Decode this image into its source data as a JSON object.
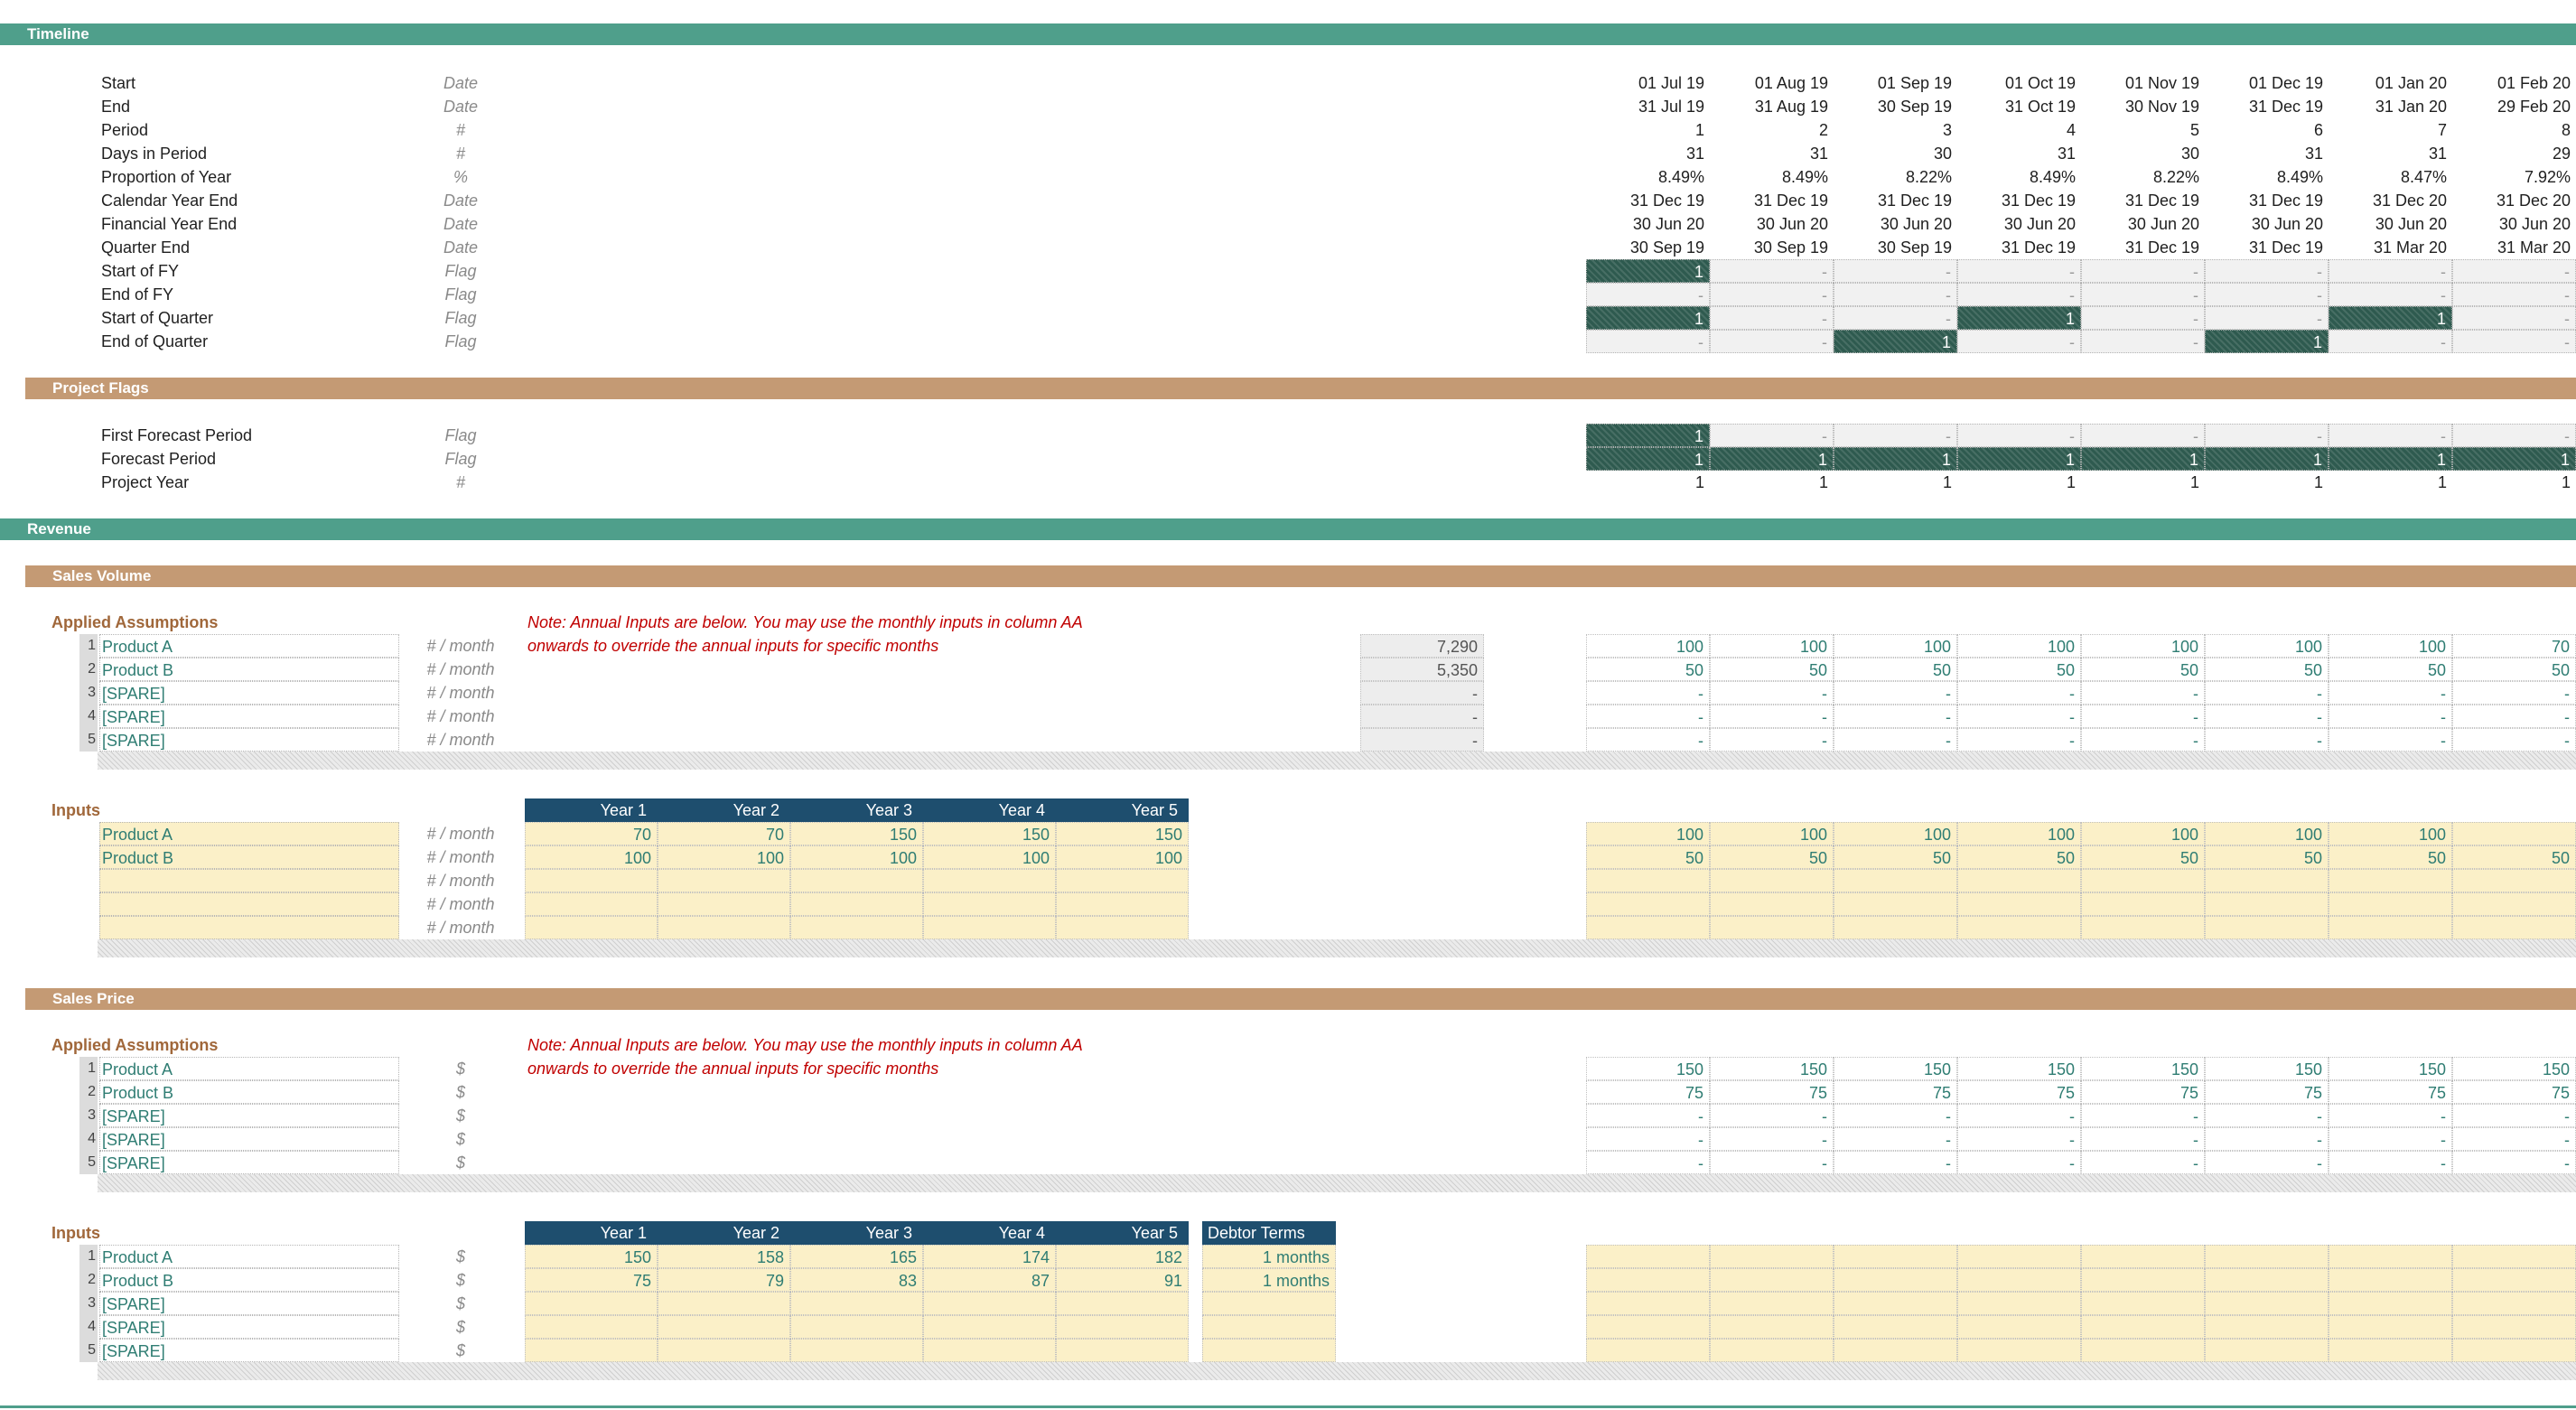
{
  "sections": {
    "timeline": "Timeline",
    "project_flags": "Project Flags",
    "revenue": "Revenue",
    "sales_volume": "Sales Volume",
    "sales_price": "Sales Price"
  },
  "months": [
    "01 Jul 19",
    "01 Aug 19",
    "01 Sep 19",
    "01 Oct 19",
    "01 Nov 19",
    "01 Dec 19",
    "01 Jan 20",
    "01 Feb 20"
  ],
  "timeline_rows": [
    {
      "label": "Start",
      "unit": "Date",
      "values": [
        "01 Jul 19",
        "01 Aug 19",
        "01 Sep 19",
        "01 Oct 19",
        "01 Nov 19",
        "01 Dec 19",
        "01 Jan 20",
        "01 Feb 20"
      ]
    },
    {
      "label": "End",
      "unit": "Date",
      "values": [
        "31 Jul 19",
        "31 Aug 19",
        "30 Sep 19",
        "31 Oct 19",
        "30 Nov 19",
        "31 Dec 19",
        "31 Jan 20",
        "29 Feb 20"
      ]
    },
    {
      "label": "Period",
      "unit": "#",
      "values": [
        "1",
        "2",
        "3",
        "4",
        "5",
        "6",
        "7",
        "8"
      ]
    },
    {
      "label": "Days in Period",
      "unit": "#",
      "values": [
        "31",
        "31",
        "30",
        "31",
        "30",
        "31",
        "31",
        "29"
      ]
    },
    {
      "label": "Proportion of Year",
      "unit": "%",
      "values": [
        "8.49%",
        "8.49%",
        "8.22%",
        "8.49%",
        "8.22%",
        "8.49%",
        "8.47%",
        "7.92%"
      ]
    },
    {
      "label": "Calendar Year End",
      "unit": "Date",
      "values": [
        "31 Dec 19",
        "31 Dec 19",
        "31 Dec 19",
        "31 Dec 19",
        "31 Dec 19",
        "31 Dec 19",
        "31 Dec 20",
        "31 Dec 20"
      ]
    },
    {
      "label": "Financial Year End",
      "unit": "Date",
      "values": [
        "30 Jun 20",
        "30 Jun 20",
        "30 Jun 20",
        "30 Jun 20",
        "30 Jun 20",
        "30 Jun 20",
        "30 Jun 20",
        "30 Jun 20"
      ]
    },
    {
      "label": "Quarter End",
      "unit": "Date",
      "values": [
        "30 Sep 19",
        "30 Sep 19",
        "30 Sep 19",
        "31 Dec 19",
        "31 Dec 19",
        "31 Dec 19",
        "31 Mar 20",
        "31 Mar 20"
      ]
    }
  ],
  "flag_rows": [
    {
      "label": "Start of FY",
      "unit": "Flag",
      "values": [
        "1",
        "-",
        "-",
        "-",
        "-",
        "-",
        "-",
        "-"
      ]
    },
    {
      "label": "End of FY",
      "unit": "Flag",
      "values": [
        "-",
        "-",
        "-",
        "-",
        "-",
        "-",
        "-",
        "-"
      ]
    },
    {
      "label": "Start of Quarter",
      "unit": "Flag",
      "values": [
        "1",
        "-",
        "-",
        "1",
        "-",
        "-",
        "1",
        "-"
      ]
    },
    {
      "label": "End of Quarter",
      "unit": "Flag",
      "values": [
        "-",
        "-",
        "1",
        "-",
        "-",
        "1",
        "-",
        "-"
      ]
    }
  ],
  "project_rows": [
    {
      "label": "First Forecast Period",
      "unit": "Flag",
      "values": [
        "1",
        "-",
        "-",
        "-",
        "-",
        "-",
        "-",
        "-"
      ],
      "flag": true
    },
    {
      "label": "Forecast Period",
      "unit": "Flag",
      "values": [
        "1",
        "1",
        "1",
        "1",
        "1",
        "1",
        "1",
        "1"
      ],
      "flag": true
    },
    {
      "label": "Project Year",
      "unit": "#",
      "values": [
        "1",
        "1",
        "1",
        "1",
        "1",
        "1",
        "1",
        "1"
      ],
      "flag": false
    }
  ],
  "common": {
    "applied_assumptions": "Applied Assumptions",
    "inputs": "Inputs",
    "note_line1": "Note: Annual Inputs are below. You may use the monthly inputs in column AA",
    "note_line2": "onwards to override the annual inputs for specific months",
    "years": [
      "Year 1",
      "Year 2",
      "Year 3",
      "Year 4",
      "Year 5"
    ],
    "debtor_terms": "Debtor Terms"
  },
  "volume": {
    "applied": [
      {
        "n": "1",
        "name": "Product A",
        "unit": "# / month",
        "total": "7,290",
        "values": [
          "100",
          "100",
          "100",
          "100",
          "100",
          "100",
          "100",
          "70"
        ]
      },
      {
        "n": "2",
        "name": "Product B",
        "unit": "# / month",
        "total": "5,350",
        "values": [
          "50",
          "50",
          "50",
          "50",
          "50",
          "50",
          "50",
          "50"
        ]
      },
      {
        "n": "3",
        "name": "[SPARE]",
        "unit": "# / month",
        "total": "-",
        "values": [
          "-",
          "-",
          "-",
          "-",
          "-",
          "-",
          "-",
          "-"
        ]
      },
      {
        "n": "4",
        "name": "[SPARE]",
        "unit": "# / month",
        "total": "-",
        "values": [
          "-",
          "-",
          "-",
          "-",
          "-",
          "-",
          "-",
          "-"
        ]
      },
      {
        "n": "5",
        "name": "[SPARE]",
        "unit": "# / month",
        "total": "-",
        "values": [
          "-",
          "-",
          "-",
          "-",
          "-",
          "-",
          "-",
          "-"
        ]
      }
    ],
    "inputs": [
      {
        "name": "Product A",
        "unit": "# / month",
        "years": [
          "70",
          "70",
          "150",
          "150",
          "150"
        ],
        "monthly": [
          "100",
          "100",
          "100",
          "100",
          "100",
          "100",
          "100",
          ""
        ]
      },
      {
        "name": "Product B",
        "unit": "# / month",
        "years": [
          "100",
          "100",
          "100",
          "100",
          "100"
        ],
        "monthly": [
          "50",
          "50",
          "50",
          "50",
          "50",
          "50",
          "50",
          "50"
        ]
      },
      {
        "name": "",
        "unit": "# / month",
        "years": [
          "",
          "",
          "",
          "",
          ""
        ],
        "monthly": [
          "",
          "",
          "",
          "",
          "",
          "",
          "",
          ""
        ]
      },
      {
        "name": "",
        "unit": "# / month",
        "years": [
          "",
          "",
          "",
          "",
          ""
        ],
        "monthly": [
          "",
          "",
          "",
          "",
          "",
          "",
          "",
          ""
        ]
      },
      {
        "name": "",
        "unit": "# / month",
        "years": [
          "",
          "",
          "",
          "",
          ""
        ],
        "monthly": [
          "",
          "",
          "",
          "",
          "",
          "",
          "",
          ""
        ]
      }
    ]
  },
  "price": {
    "applied": [
      {
        "n": "1",
        "name": "Product A",
        "unit": "$",
        "values": [
          "150",
          "150",
          "150",
          "150",
          "150",
          "150",
          "150",
          "150"
        ]
      },
      {
        "n": "2",
        "name": "Product B",
        "unit": "$",
        "values": [
          "75",
          "75",
          "75",
          "75",
          "75",
          "75",
          "75",
          "75"
        ]
      },
      {
        "n": "3",
        "name": "[SPARE]",
        "unit": "$",
        "values": [
          "-",
          "-",
          "-",
          "-",
          "-",
          "-",
          "-",
          "-"
        ]
      },
      {
        "n": "4",
        "name": "[SPARE]",
        "unit": "$",
        "values": [
          "-",
          "-",
          "-",
          "-",
          "-",
          "-",
          "-",
          "-"
        ]
      },
      {
        "n": "5",
        "name": "[SPARE]",
        "unit": "$",
        "values": [
          "-",
          "-",
          "-",
          "-",
          "-",
          "-",
          "-",
          "-"
        ]
      }
    ],
    "inputs": [
      {
        "n": "1",
        "name": "Product A",
        "unit": "$",
        "years": [
          "150",
          "158",
          "165",
          "174",
          "182"
        ],
        "debtor": "1 months"
      },
      {
        "n": "2",
        "name": "Product B",
        "unit": "$",
        "years": [
          "75",
          "79",
          "83",
          "87",
          "91"
        ],
        "debtor": "1 months"
      },
      {
        "n": "3",
        "name": "[SPARE]",
        "unit": "$",
        "years": [
          "",
          "",
          "",
          "",
          ""
        ],
        "debtor": ""
      },
      {
        "n": "4",
        "name": "[SPARE]",
        "unit": "$",
        "years": [
          "",
          "",
          "",
          "",
          ""
        ],
        "debtor": ""
      },
      {
        "n": "5",
        "name": "[SPARE]",
        "unit": "$",
        "years": [
          "",
          "",
          "",
          "",
          ""
        ],
        "debtor": ""
      }
    ]
  }
}
